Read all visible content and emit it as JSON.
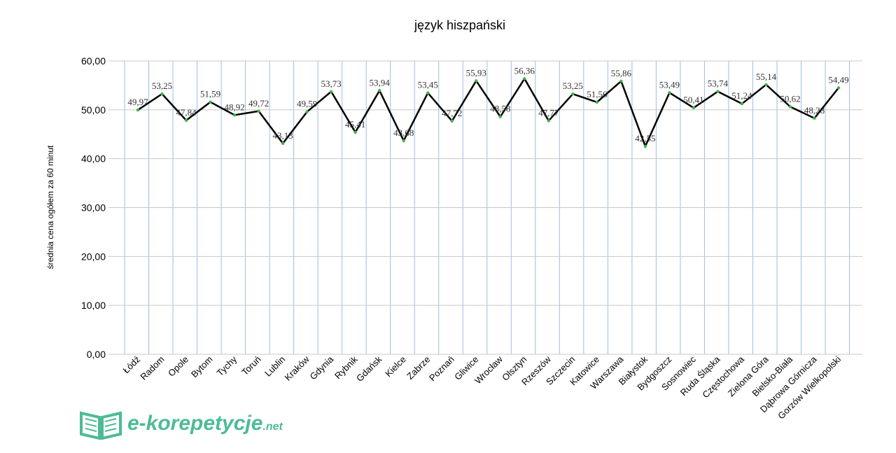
{
  "chart_data": {
    "type": "line",
    "title": "język hiszpański",
    "xlabel": "",
    "ylabel": "średnia cena ogółem za 60 minut",
    "ylim": [
      0,
      60
    ],
    "yticks": [
      "0,00",
      "10,00",
      "20,00",
      "30,00",
      "40,00",
      "50,00",
      "60,00"
    ],
    "grid": true,
    "categories": [
      "Łódź",
      "Radom",
      "Opole",
      "Bytom",
      "Tychy",
      "Toruń",
      "Lublin",
      "Kraków",
      "Gdynia",
      "Rybnik",
      "Gdańsk",
      "Kielce",
      "Zabrze",
      "Poznań",
      "Gliwice",
      "Wrocław",
      "Olsztyn",
      "Rzeszów",
      "Szczecin",
      "Katowice",
      "Warszawa",
      "Białystok",
      "Bydgoszcz",
      "Sosnowiec",
      "Ruda Śląska",
      "Częstochowa",
      "Zielona Góra",
      "Bielsko-Biała",
      "Dąbrowa Górnicza",
      "Gorzów Wielkopolski"
    ],
    "values": [
      49.97,
      53.25,
      47.84,
      51.59,
      48.92,
      49.72,
      43.13,
      49.59,
      53.73,
      45.41,
      53.94,
      43.68,
      53.45,
      47.72,
      55.93,
      48.58,
      56.36,
      47.77,
      53.25,
      51.56,
      55.86,
      42.55,
      53.49,
      50.41,
      53.74,
      51.24,
      55.14,
      50.62,
      48.28,
      54.49
    ],
    "labels": [
      "49,97",
      "53,25",
      "47,84",
      "51,59",
      "48,92",
      "49,72",
      "43,13",
      "49,59",
      "53,73",
      "45,41",
      "53,94",
      "43,68",
      "53,45",
      "47,72",
      "55,93",
      "48,58",
      "56,36",
      "47,77",
      "53,25",
      "51,56",
      "55,86",
      "42,55",
      "53,49",
      "50,41",
      "53,74",
      "51,24",
      "55,14",
      "50,62",
      "48,28",
      "54,49"
    ],
    "line_color": "#000000",
    "marker_color": "#3cb44b",
    "grid_color_vertical": "#9dbde6",
    "grid_color_horizontal": "#c8c8c8"
  },
  "logo": {
    "text": "e-korepetycje",
    "suffix": ".net",
    "color": "#4dbb97"
  }
}
